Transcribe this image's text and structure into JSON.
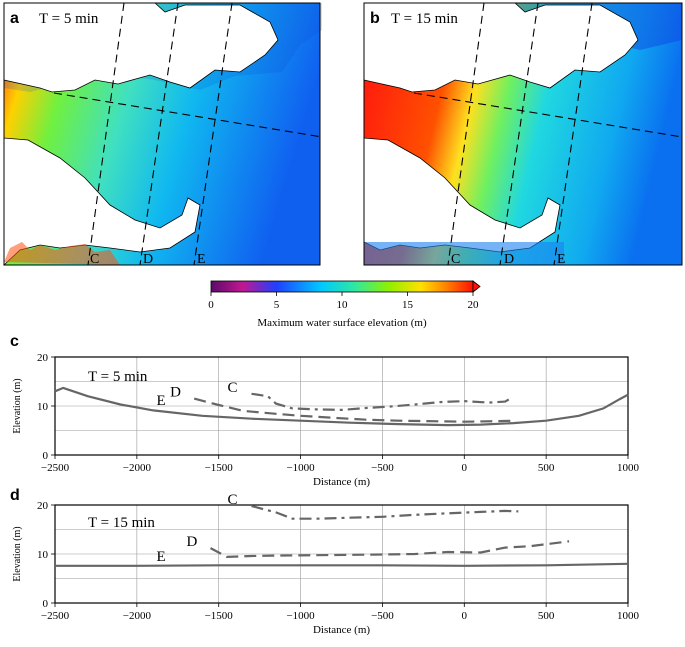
{
  "panels": {
    "a": {
      "letter": "a",
      "time_label": "T = 5 min"
    },
    "b": {
      "letter": "b",
      "time_label": "T = 15 min"
    }
  },
  "transect_labels": [
    "C",
    "D",
    "E"
  ],
  "colorbar": {
    "label": "Maximum water surface elevation (m)",
    "ticks": [
      "0",
      "5",
      "10",
      "15",
      "20"
    ],
    "min": 0,
    "max": 20,
    "colors": [
      "#5b0a6a",
      "#c01890",
      "#2040ff",
      "#00c8ff",
      "#30e8a0",
      "#90f000",
      "#ffe000",
      "#ff8000",
      "#ff1000"
    ]
  },
  "chart_data": [
    {
      "type": "line",
      "panel": "c",
      "annotation": "T = 5 min",
      "xlabel": "Distance (m)",
      "ylabel": "Elevation (m)",
      "xlim": [
        -2500,
        1000
      ],
      "ylim": [
        0,
        20
      ],
      "xticks": [
        "−2500",
        "−2000",
        "−1500",
        "−1000",
        "−500",
        "0",
        "500",
        "1000"
      ],
      "yticks": [
        "0",
        "10",
        "20"
      ],
      "grid": true,
      "series": [
        {
          "name": "C",
          "style": "dashdot",
          "x": [
            -1300,
            -1200,
            -1150,
            -1050,
            -900,
            -750,
            -600,
            -450,
            -300,
            -150,
            0,
            150,
            250,
            280
          ],
          "y": [
            12.5,
            12.0,
            10.5,
            9.5,
            9.3,
            9.2,
            9.6,
            9.9,
            10.3,
            10.8,
            11.0,
            10.7,
            10.9,
            11.5
          ]
        },
        {
          "name": "D",
          "style": "dashed",
          "x": [
            -1650,
            -1500,
            -1350,
            -1150,
            -1000,
            -800,
            -600,
            -400,
            -200,
            0,
            200,
            300
          ],
          "y": [
            11.5,
            10.2,
            9.0,
            8.4,
            8.0,
            7.6,
            7.2,
            7.0,
            6.9,
            6.8,
            6.9,
            7.0
          ]
        },
        {
          "name": "E",
          "style": "solid",
          "x": [
            -2500,
            -2450,
            -2300,
            -2100,
            -1900,
            -1600,
            -1300,
            -1000,
            -700,
            -400,
            -100,
            100,
            300,
            500,
            700,
            850,
            950,
            1000
          ],
          "y": [
            13.0,
            13.7,
            12.0,
            10.3,
            9.1,
            8.0,
            7.4,
            7.0,
            6.6,
            6.3,
            6.1,
            6.2,
            6.5,
            7.0,
            8.0,
            9.5,
            11.4,
            12.3
          ]
        }
      ]
    },
    {
      "type": "line",
      "panel": "d",
      "annotation": "T = 15 min",
      "xlabel": "Distance (m)",
      "ylabel": "Elevation (m)",
      "xlim": [
        -2500,
        1000
      ],
      "ylim": [
        0,
        20
      ],
      "xticks": [
        "−2500",
        "−2000",
        "−1500",
        "−1000",
        "−500",
        "0",
        "500",
        "1000"
      ],
      "yticks": [
        "0",
        "10",
        "20"
      ],
      "grid": true,
      "series": [
        {
          "name": "C",
          "style": "dashdot",
          "x": [
            -1300,
            -1150,
            -1050,
            -900,
            -700,
            -500,
            -300,
            -100,
            100,
            250,
            330
          ],
          "y": [
            19.8,
            18.5,
            17.2,
            17.2,
            17.4,
            17.6,
            18.0,
            18.3,
            18.6,
            18.8,
            18.7
          ]
        },
        {
          "name": "D",
          "style": "dashed",
          "x": [
            -1550,
            -1450,
            -1300,
            -1100,
            -800,
            -500,
            -300,
            -100,
            100,
            250,
            400,
            550,
            640
          ],
          "y": [
            11.2,
            9.4,
            9.6,
            9.7,
            9.8,
            9.9,
            10.0,
            10.4,
            10.3,
            11.3,
            11.6,
            12.2,
            12.6
          ]
        },
        {
          "name": "E",
          "style": "solid",
          "x": [
            -2500,
            -2000,
            -1500,
            -1000,
            -500,
            0,
            500,
            1000
          ],
          "y": [
            7.6,
            7.6,
            7.7,
            7.7,
            7.7,
            7.6,
            7.7,
            8.0
          ]
        }
      ]
    }
  ]
}
